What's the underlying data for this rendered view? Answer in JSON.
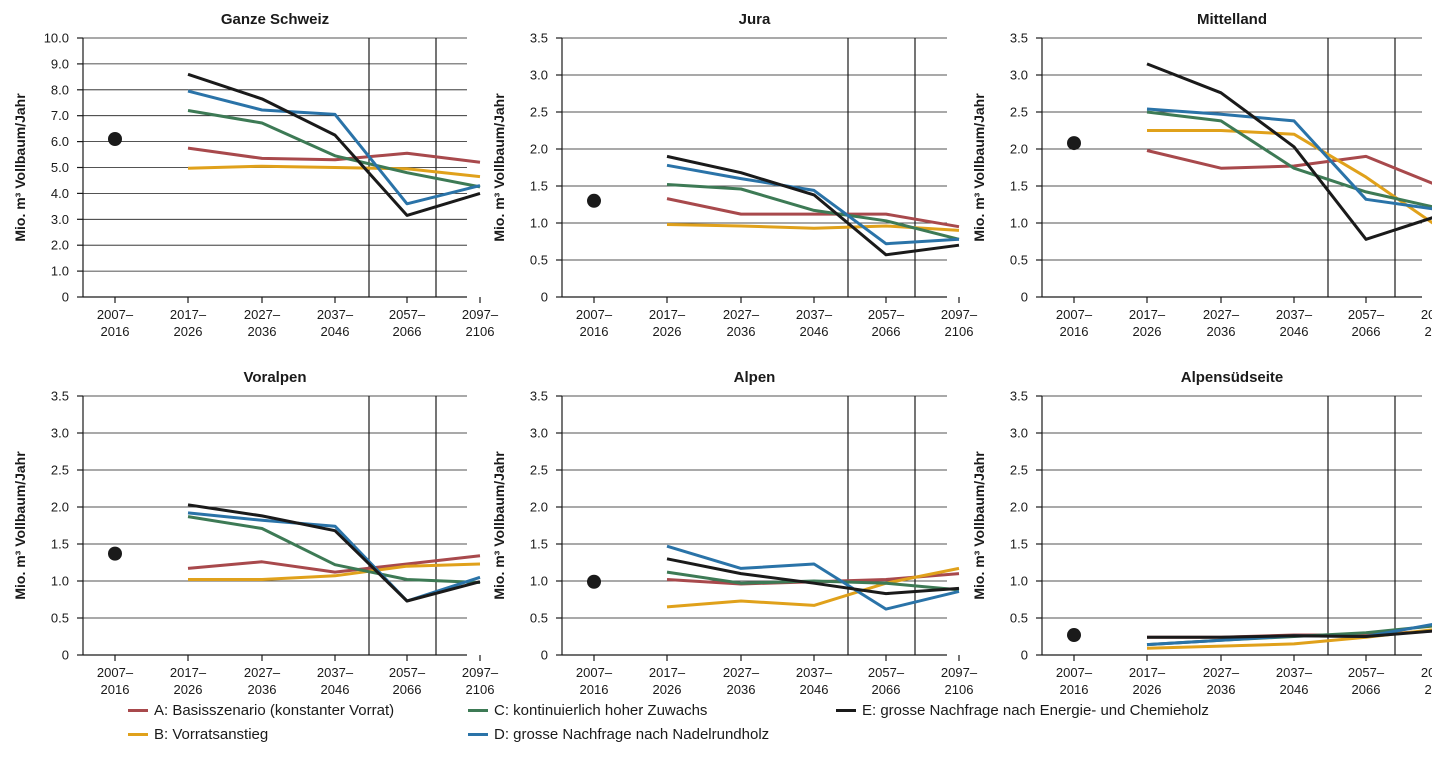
{
  "chart_data": {
    "type": "line",
    "x_categories": [
      [
        "2007–",
        "2016"
      ],
      [
        "2017–",
        "2026"
      ],
      [
        "2027–",
        "2036"
      ],
      [
        "2037–",
        "2046"
      ],
      [
        "2057–",
        "2066"
      ],
      [
        "2097–",
        "2106"
      ]
    ],
    "ylabel": "Mio. m³ Vollbaum/Jahr",
    "series_legend": [
      {
        "key": "A",
        "name": "A: Basisszenario (konstanter Vorrat)",
        "color": "#a8494c"
      },
      {
        "key": "B",
        "name": "B: Vorratsanstieg",
        "color": "#e0a11b"
      },
      {
        "key": "C",
        "name": "C: kontinuierlich hoher Zuwachs",
        "color": "#3d7a55"
      },
      {
        "key": "D",
        "name": "D: grosse Nachfrage nach Nadelrundholz",
        "color": "#2a73a8"
      },
      {
        "key": "E",
        "name": "E: grosse Nachfrage nach Energie- und Chemieholz",
        "color": "#1a1a1a"
      }
    ],
    "panels": [
      {
        "title": "Ganze Schweiz",
        "ylim": [
          0,
          10
        ],
        "yticks": [
          "0",
          "1.0",
          "2.0",
          "3.0",
          "4.0",
          "5.0",
          "6.0",
          "7.0",
          "8.0",
          "9.0",
          "10.0"
        ],
        "baseline": 6.1,
        "series": {
          "A": [
            5.75,
            5.35,
            5.3,
            5.55,
            5.2
          ],
          "B": [
            4.97,
            5.05,
            5.0,
            4.95,
            4.65
          ],
          "C": [
            7.2,
            6.72,
            5.45,
            4.8,
            4.25
          ],
          "D": [
            7.95,
            7.22,
            7.05,
            3.6,
            4.3
          ],
          "E": [
            8.6,
            7.65,
            6.25,
            3.15,
            4.0
          ]
        }
      },
      {
        "title": "Jura",
        "ylim": [
          0,
          3.5
        ],
        "yticks": [
          "0",
          "0.5",
          "1.0",
          "1.5",
          "2.0",
          "2.5",
          "3.0",
          "3.5"
        ],
        "baseline": 1.3,
        "series": {
          "A": [
            1.33,
            1.12,
            1.12,
            1.12,
            0.95
          ],
          "B": [
            0.98,
            0.96,
            0.93,
            0.96,
            0.9
          ],
          "C": [
            1.52,
            1.46,
            1.17,
            1.03,
            0.78
          ],
          "D": [
            1.78,
            1.6,
            1.44,
            0.72,
            0.78
          ],
          "E": [
            1.9,
            1.68,
            1.38,
            0.57,
            0.7
          ]
        }
      },
      {
        "title": "Mittelland",
        "ylim": [
          0,
          3.5
        ],
        "yticks": [
          "0",
          "0.5",
          "1.0",
          "1.5",
          "2.0",
          "2.5",
          "3.0",
          "3.5"
        ],
        "baseline": 2.08,
        "series": {
          "A": [
            1.98,
            1.74,
            1.77,
            1.9,
            1.5
          ],
          "B": [
            2.25,
            2.25,
            2.2,
            1.62,
            0.94
          ],
          "C": [
            2.5,
            2.38,
            1.74,
            1.42,
            1.2
          ],
          "D": [
            2.54,
            2.47,
            2.38,
            1.32,
            1.18
          ],
          "E": [
            3.15,
            2.76,
            2.03,
            0.78,
            1.1
          ]
        }
      },
      {
        "title": "Voralpen",
        "ylim": [
          0,
          3.5
        ],
        "yticks": [
          "0",
          "0.5",
          "1.0",
          "1.5",
          "2.0",
          "2.5",
          "3.0",
          "3.5"
        ],
        "baseline": 1.37,
        "series": {
          "A": [
            1.17,
            1.26,
            1.12,
            1.23,
            1.34
          ],
          "B": [
            1.02,
            1.02,
            1.07,
            1.2,
            1.23
          ],
          "C": [
            1.87,
            1.71,
            1.22,
            1.02,
            0.98
          ],
          "D": [
            1.92,
            1.82,
            1.74,
            0.73,
            1.05
          ],
          "E": [
            2.03,
            1.88,
            1.68,
            0.73,
            0.99
          ]
        }
      },
      {
        "title": "Alpen",
        "ylim": [
          0,
          3.5
        ],
        "yticks": [
          "0",
          "0.5",
          "1.0",
          "1.5",
          "2.0",
          "2.5",
          "3.0",
          "3.5"
        ],
        "baseline": 0.99,
        "series": {
          "A": [
            1.02,
            0.96,
            0.99,
            1.02,
            1.1
          ],
          "B": [
            0.65,
            0.73,
            0.67,
            0.97,
            1.17
          ],
          "C": [
            1.12,
            0.97,
            1.0,
            0.97,
            0.88
          ],
          "D": [
            1.47,
            1.17,
            1.23,
            0.62,
            0.86
          ],
          "E": [
            1.3,
            1.1,
            0.97,
            0.83,
            0.9
          ]
        }
      },
      {
        "title": "Alpensüdseite",
        "ylim": [
          0,
          3.5
        ],
        "yticks": [
          "0",
          "0.5",
          "1.0",
          "1.5",
          "2.0",
          "2.5",
          "3.0",
          "3.5"
        ],
        "baseline": 0.27,
        "series": {
          "A": [
            0.24,
            0.24,
            0.27,
            0.27,
            0.33
          ],
          "B": [
            0.09,
            0.12,
            0.15,
            0.24,
            0.35
          ],
          "C": [
            0.14,
            0.2,
            0.25,
            0.3,
            0.4
          ],
          "D": [
            0.14,
            0.2,
            0.26,
            0.25,
            0.43
          ],
          "E": [
            0.24,
            0.24,
            0.26,
            0.25,
            0.33
          ]
        }
      }
    ]
  }
}
